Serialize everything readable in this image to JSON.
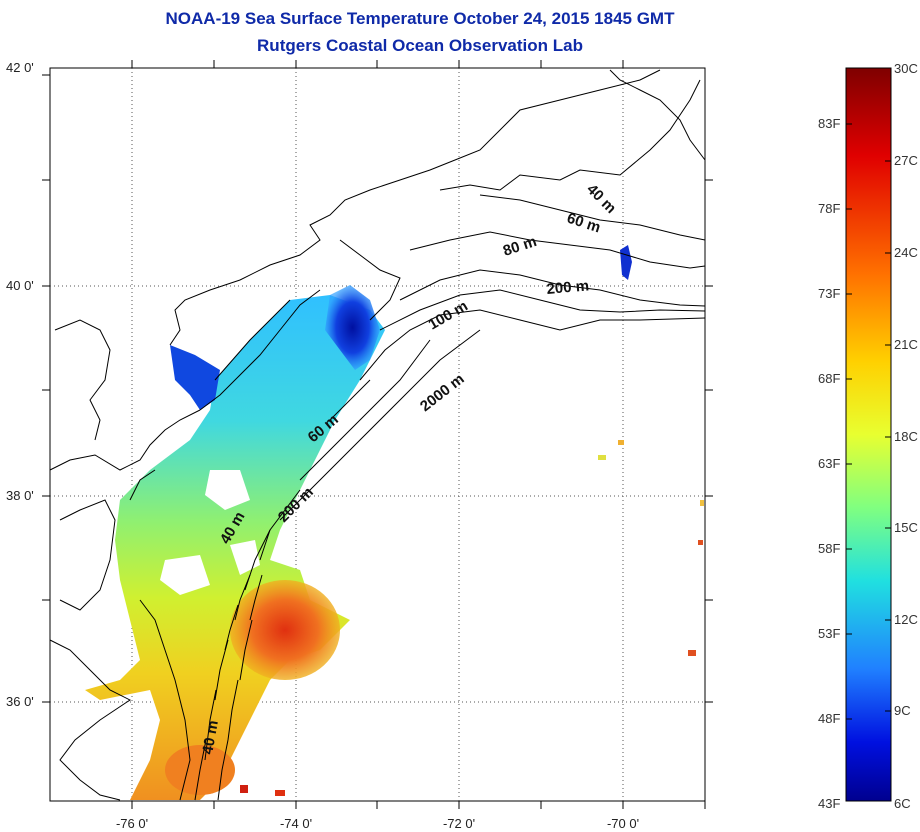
{
  "title": "NOAA-19 Sea Surface Temperature October 24, 2015 1845 GMT",
  "subtitle": "Rutgers Coastal Ocean Observation Lab",
  "map": {
    "lat_ticks": [
      "42 0'",
      "40 0'",
      "38 0'",
      "36 0'"
    ],
    "lon_ticks": [
      "-76 0'",
      "-74 0'",
      "-72 0'",
      "-70 0'"
    ],
    "contour_labels": [
      "40 m",
      "60 m",
      "80 m",
      "200 m",
      "100 m",
      "2000 m",
      "60 m",
      "200 m",
      "40 m",
      "40 m"
    ],
    "grid": "dotted"
  },
  "colorbar": {
    "fahrenheit": [
      "83F",
      "78F",
      "73F",
      "68F",
      "63F",
      "58F",
      "53F",
      "48F",
      "43F"
    ],
    "celsius": [
      "30C",
      "27C",
      "24C",
      "21C",
      "18C",
      "15C",
      "12C",
      "9C",
      "6C"
    ],
    "colormap": [
      "#7f0000",
      "#ff0000",
      "#ff8000",
      "#ffff00",
      "#80ff80",
      "#00ffff",
      "#0080ff",
      "#0000ff",
      "#00008f"
    ]
  }
}
